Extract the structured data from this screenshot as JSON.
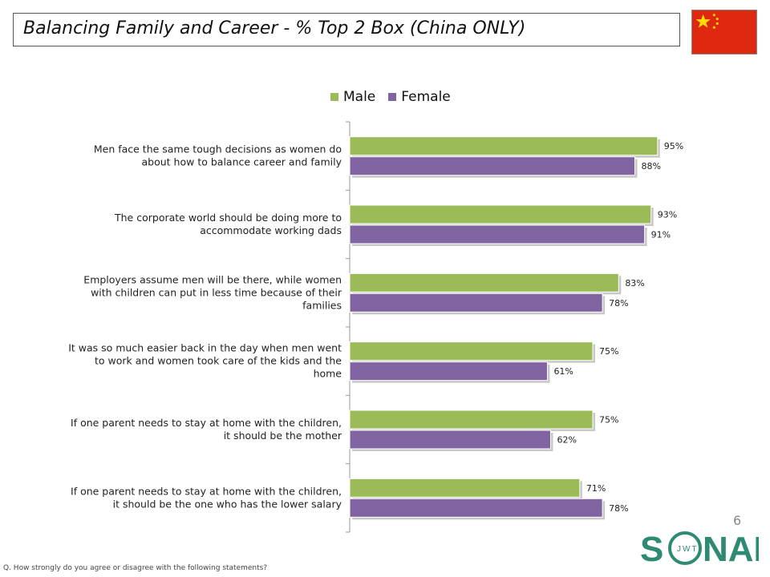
{
  "title": "Balancing Family and Career - % Top 2 Box (China ONLY)",
  "page_number": "6",
  "footnote": "Q. How strongly do you agree or disagree with the following statements?",
  "logo_text": "SONAR",
  "logo_subtext": "JWT",
  "colors": {
    "male": "#9bbb59",
    "female": "#8064a2",
    "flag_red": "#de2910",
    "flag_star": "#ffde00"
  },
  "chart_data": {
    "type": "bar",
    "orientation": "horizontal",
    "categories": [
      "Men face the same tough decisions as women do about how to balance career and family",
      "The corporate world should be doing more to accommodate working dads",
      "Employers assume men will be there, while women with children can put in less time because of their families",
      "It was so much easier back in the day when men went to work and women took care of the kids and the home",
      "If one parent needs to stay at home with the children, it should be the mother",
      "If one parent needs to stay at home with the children, it should be the one who has the lower salary"
    ],
    "series": [
      {
        "name": "Male",
        "values": [
          95,
          93,
          83,
          75,
          75,
          71
        ],
        "labels": [
          "95%",
          "93%",
          "83%",
          "75%",
          "75%",
          "71%"
        ]
      },
      {
        "name": "Female",
        "values": [
          88,
          91,
          78,
          61,
          62,
          78
        ],
        "labels": [
          "88%",
          "91%",
          "78%",
          "61%",
          "62%",
          "78%"
        ]
      }
    ],
    "xlim": [
      0,
      100
    ],
    "legend_position": "top",
    "grid": false
  }
}
